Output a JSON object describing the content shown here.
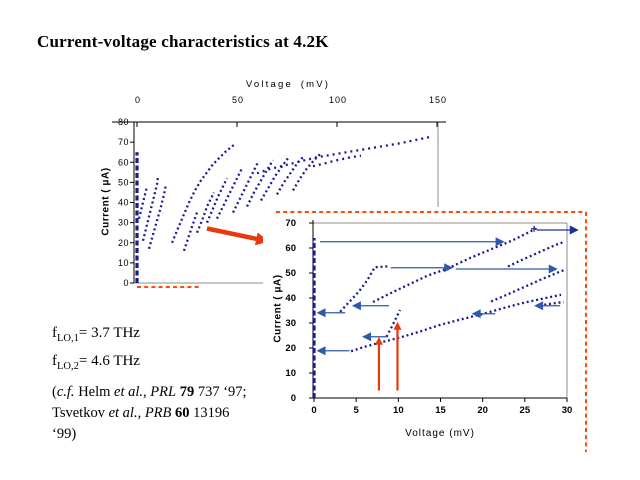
{
  "slide": {
    "title": "Current-voltage characteristics at 4.2K"
  },
  "colors": {
    "data_navy": "#1b1b8e",
    "arrow_blue": "#2e5aa9",
    "accent_red": "#e8380d",
    "dashed_border": "#ff4d00",
    "axis_gray": "#8c8c8c",
    "axis_black": "#000000"
  },
  "annotations": {
    "flo1": {
      "base": "f",
      "sub": "LO,1",
      "rest": "= 3.7 THz"
    },
    "flo2": {
      "base": "f",
      "sub": "LO,2",
      "rest": "= 4.6 THz"
    },
    "citation_lines": [
      [
        {
          "t": "(",
          "s": ""
        },
        {
          "t": "c.f.",
          "s": "i"
        },
        {
          "t": " Helm ",
          "s": ""
        },
        {
          "t": "et al.",
          "s": "i"
        },
        {
          "t": ", ",
          "s": ""
        },
        {
          "t": "PRL",
          "s": "i"
        },
        {
          "t": " ",
          "s": ""
        },
        {
          "t": "79",
          "s": "b"
        },
        {
          "t": " 737 ‘97;",
          "s": ""
        }
      ],
      [
        {
          "t": "Tsvetkov ",
          "s": ""
        },
        {
          "t": "et al.",
          "s": "i"
        },
        {
          "t": ", ",
          "s": ""
        },
        {
          "t": "PRB",
          "s": "i"
        },
        {
          "t": " ",
          "s": ""
        },
        {
          "t": "60",
          "s": "b"
        },
        {
          "t": " 13196",
          "s": ""
        }
      ],
      [
        {
          "t": "‘99)",
          "s": ""
        }
      ]
    ]
  },
  "chart_data": [
    {
      "id": "main",
      "type": "scatter",
      "xlabel": "Voltage (mV)",
      "ylabel": "Current ( μA)",
      "xlim": [
        0,
        150
      ],
      "ylim": [
        0,
        80
      ],
      "x_ticks": [
        0,
        50,
        100,
        150
      ],
      "y_ticks": [
        0,
        10,
        20,
        30,
        40,
        50,
        60,
        70,
        80
      ],
      "grid": false,
      "series": [
        {
          "name": "supercurrent-branch",
          "style": "bar",
          "points": [
            [
              0,
              0
            ],
            [
              0,
              65
            ]
          ]
        },
        {
          "name": "branch-1",
          "points": [
            [
              1,
              32
            ],
            [
              2.5,
              38
            ],
            [
              4,
              44
            ],
            [
              5,
              48
            ]
          ]
        },
        {
          "name": "branch-2",
          "points": [
            [
              3,
              21
            ],
            [
              5,
              29
            ],
            [
              7,
              37
            ],
            [
              9,
              45
            ],
            [
              10,
              49
            ],
            [
              10.5,
              53
            ]
          ]
        },
        {
          "name": "branch-3",
          "points": [
            [
              6,
              17
            ],
            [
              8,
              24
            ],
            [
              10,
              31
            ],
            [
              12,
              38
            ],
            [
              13.5,
              44
            ],
            [
              14.5,
              49
            ]
          ]
        },
        {
          "name": "tall-branch",
          "points": [
            [
              17.5,
              20
            ],
            [
              20,
              26
            ],
            [
              23,
              33
            ],
            [
              26,
              40
            ],
            [
              29,
              46
            ],
            [
              32,
              51
            ],
            [
              35,
              55
            ],
            [
              38,
              59
            ],
            [
              41,
              62
            ],
            [
              44,
              65
            ],
            [
              47,
              67.5
            ],
            [
              49,
              69
            ]
          ]
        },
        {
          "name": "branch-5",
          "points": [
            [
              23.5,
              16
            ],
            [
              25.5,
              22
            ],
            [
              27.5,
              28
            ],
            [
              30,
              35
            ]
          ]
        },
        {
          "name": "branch-6",
          "points": [
            [
              30,
              25
            ],
            [
              32.5,
              31
            ],
            [
              35,
              38
            ],
            [
              37.5,
              43
            ],
            [
              38.5,
              45
            ]
          ]
        },
        {
          "name": "branch-7",
          "points": [
            [
              35,
              30
            ],
            [
              38,
              37
            ],
            [
              41,
              44
            ],
            [
              44,
              50
            ],
            [
              45,
              52
            ]
          ]
        },
        {
          "name": "branch-8",
          "points": [
            [
              40,
              32
            ],
            [
              43.5,
              39
            ],
            [
              47,
              46
            ],
            [
              50.5,
              53
            ],
            [
              52.5,
              57
            ]
          ]
        },
        {
          "name": "branch-9",
          "points": [
            [
              48,
              35
            ],
            [
              51.5,
              42
            ],
            [
              55,
              49
            ],
            [
              58.5,
              56
            ],
            [
              60.5,
              60
            ]
          ]
        },
        {
          "name": "branch-10",
          "points": [
            [
              55,
              38
            ],
            [
              58.5,
              45
            ],
            [
              62,
              51
            ],
            [
              65.5,
              57
            ],
            [
              68,
              61
            ]
          ]
        },
        {
          "name": "branch-11",
          "points": [
            [
              62,
              41
            ],
            [
              65.5,
              47
            ],
            [
              69,
              53
            ],
            [
              72.5,
              58
            ],
            [
              75.5,
              62
            ]
          ]
        },
        {
          "name": "branch-12",
          "points": [
            [
              70,
              44
            ],
            [
              73.5,
              50
            ],
            [
              77,
              55
            ],
            [
              80.5,
              60
            ],
            [
              83.5,
              63
            ]
          ]
        },
        {
          "name": "branch-13",
          "points": [
            [
              78,
              46
            ],
            [
              81.5,
              52
            ],
            [
              85,
              57
            ],
            [
              88.5,
              61
            ],
            [
              91.5,
              64
            ]
          ]
        },
        {
          "name": "upper-envelope",
          "style": "sparse",
          "points": [
            [
              60,
              54.5
            ],
            [
              66,
              56.5
            ],
            [
              72,
              58
            ],
            [
              78,
              59.5
            ],
            [
              84,
              61
            ],
            [
              90,
              62.5
            ],
            [
              96,
              63.5
            ],
            [
              102,
              64.5
            ],
            [
              108,
              65.5
            ],
            [
              114,
              66.5
            ],
            [
              120,
              67.5
            ],
            [
              126,
              68.5
            ],
            [
              132,
              69.5
            ],
            [
              138,
              70.8
            ],
            [
              144,
              72
            ],
            [
              148,
              73
            ]
          ]
        },
        {
          "name": "secondary-envelope",
          "style": "sparse",
          "points": [
            [
              88,
              58
            ],
            [
              94,
              59.5
            ],
            [
              100,
              61
            ],
            [
              106,
              62.3
            ],
            [
              112,
              63.3
            ]
          ]
        }
      ]
    },
    {
      "id": "inset",
      "type": "scatter",
      "xlabel": "Voltage (mV)",
      "ylabel": "Current ( μA)",
      "xlim": [
        0,
        30
      ],
      "ylim": [
        0,
        70
      ],
      "x_ticks": [
        0,
        5,
        10,
        15,
        20,
        25,
        30
      ],
      "y_ticks": [
        0,
        10,
        20,
        30,
        40,
        50,
        60,
        70
      ],
      "grid": false,
      "series": [
        {
          "name": "zero-voltage-branch",
          "style": "bar",
          "points": [
            [
              0,
              0
            ],
            [
              0,
              64
            ]
          ]
        },
        {
          "name": "branch-a",
          "points": [
            [
              3.1,
              34.5
            ],
            [
              4.2,
              38.5
            ],
            [
              5.3,
              42.5
            ],
            [
              6.3,
              47
            ],
            [
              7.2,
              52.3
            ],
            [
              9,
              52.7
            ]
          ]
        },
        {
          "name": "long-diagonal-branch",
          "points": [
            [
              7,
              38.4
            ],
            [
              9,
              41.8
            ],
            [
              11,
              45
            ],
            [
              13.5,
              49
            ],
            [
              16,
              52
            ],
            [
              18.5,
              56
            ],
            [
              21,
              59.5
            ],
            [
              23.5,
              63
            ],
            [
              25.5,
              66.3
            ],
            [
              26.3,
              67.8
            ]
          ]
        },
        {
          "name": "steep-mid-branch",
          "points": [
            [
              8.6,
              24.5
            ],
            [
              9.3,
              29
            ],
            [
              10.2,
              35.2
            ]
          ]
        },
        {
          "name": "bottom-branch",
          "points": [
            [
              4.4,
              18.7
            ],
            [
              6,
              20.5
            ],
            [
              8,
              22.3
            ],
            [
              10,
              24
            ],
            [
              12.5,
              26.5
            ],
            [
              15,
              29.3
            ],
            [
              17.5,
              31.5
            ],
            [
              20,
              33.6
            ],
            [
              22.5,
              36
            ],
            [
              25,
              38.2
            ],
            [
              27.5,
              40
            ],
            [
              29.3,
              41.3
            ]
          ]
        },
        {
          "name": "lower-right-branch",
          "points": [
            [
              21,
              38.6
            ],
            [
              23,
              41.5
            ],
            [
              25,
              44.5
            ],
            [
              27,
              47.5
            ],
            [
              29,
              50.3
            ],
            [
              29.9,
              51.5
            ]
          ]
        },
        {
          "name": "upper-right-branch",
          "points": [
            [
              23,
              52.6
            ],
            [
              24.5,
              55
            ],
            [
              26.5,
              58
            ],
            [
              28.5,
              61
            ],
            [
              29.6,
              62.4
            ]
          ]
        },
        {
          "name": "right-cluster",
          "points": [
            [
              27.3,
              37.3
            ],
            [
              28.5,
              37.9
            ],
            [
              29.6,
              38.4
            ]
          ]
        }
      ],
      "jump_arrows": [
        {
          "name": "jump-right-63",
          "i": 62.5,
          "from": 0.7,
          "to": 22.6,
          "dir": "r"
        },
        {
          "name": "jump-right-67",
          "i": 67.2,
          "from": 26.4,
          "to": 31.4,
          "dir": "r",
          "c": "#1d2f9b"
        },
        {
          "name": "jump-right-52a",
          "i": 52.1,
          "from": 9.1,
          "to": 16.5,
          "dir": "r"
        },
        {
          "name": "jump-right-52b",
          "i": 51.6,
          "from": 16.8,
          "to": 28.9,
          "dir": "r"
        },
        {
          "name": "jump-left-34a",
          "i": 34.1,
          "from": 3.7,
          "to": 0.3,
          "dir": "l"
        },
        {
          "name": "jump-left-37a",
          "i": 36.9,
          "from": 8.9,
          "to": 4.5,
          "dir": "l"
        },
        {
          "name": "jump-left-19",
          "i": 18.9,
          "from": 4.2,
          "to": 0.3,
          "dir": "l"
        },
        {
          "name": "jump-left-24",
          "i": 24.5,
          "from": 8.8,
          "to": 5.7,
          "dir": "l"
        },
        {
          "name": "jump-left-34b",
          "i": 33.7,
          "from": 21.5,
          "to": 18.7,
          "dir": "l"
        },
        {
          "name": "jump-left-37b",
          "i": 36.9,
          "from": 29.2,
          "to": 26.1,
          "dir": "l"
        }
      ],
      "red_arrows": [
        {
          "name": "photon-step-arrow-1",
          "v": 7.7,
          "from": 3,
          "to": 24.5
        },
        {
          "name": "photon-step-arrow-2",
          "v": 9.9,
          "from": 3,
          "to": 30.5
        }
      ],
      "plus_marker": [
        26.1,
        67.7
      ]
    }
  ]
}
